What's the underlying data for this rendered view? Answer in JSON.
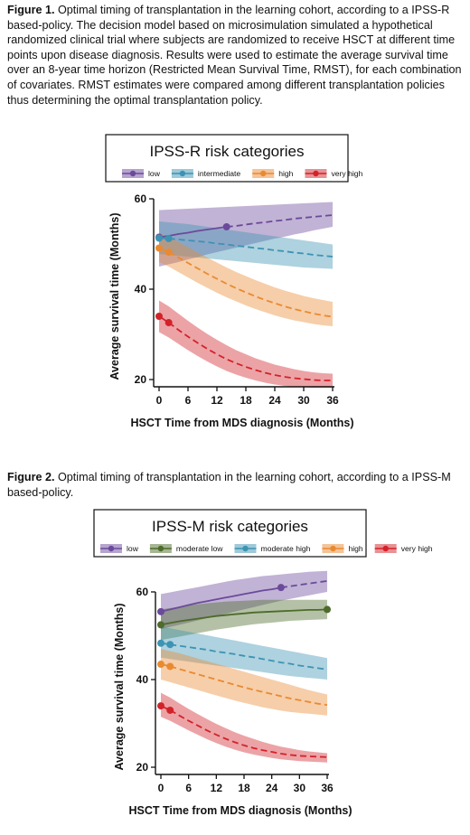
{
  "figure1": {
    "caption_label": "Figure 1.",
    "caption_text": " Optimal timing of transplantation in the learning cohort, according to a IPSS-R based-policy.  The decision model based on microsimulation simulated a hypothetical randomized clinical trial where subjects are randomized to receive HSCT at different time points upon disease diagnosis. Results were used to estimate the average survival time over an 8-year time horizon (Restricted Mean Survival Time, RMST), for each combination of covariates. RMST estimates were compared among different transplantation policies thus determining the optimal transplantation policy."
  },
  "figure2": {
    "caption_label": "Figure 2.",
    "caption_text": " Optimal timing of transplantation in the learning cohort, according to a IPSS-M based-policy."
  },
  "chart_data": [
    {
      "type": "line",
      "legend_title": "IPSS-R risk categories",
      "xlabel": "HSCT Time from MDS diagnosis (Months)",
      "ylabel": "Average survival time (Months)",
      "xlim": [
        0,
        36
      ],
      "ylim": [
        20,
        60
      ],
      "xticks": [
        0,
        6,
        12,
        18,
        24,
        30,
        36
      ],
      "yticks": [
        20,
        40,
        60
      ],
      "grid": false,
      "legend_placement": "top",
      "x": [
        0,
        2,
        4,
        6,
        8,
        10,
        12,
        14,
        16,
        18,
        20,
        22,
        24,
        26,
        28,
        30,
        32,
        34,
        36
      ],
      "series": [
        {
          "name": "low",
          "color": "#6b4a9b",
          "values": [
            51.5,
            51.8,
            52.2,
            52.5,
            52.9,
            53.2,
            53.5,
            53.8,
            54.0,
            54.3,
            54.6,
            54.8,
            55.1,
            55.3,
            55.6,
            55.8,
            56.0,
            56.2,
            56.4
          ],
          "lower": [
            45.0,
            45.5,
            46.0,
            46.6,
            47.1,
            47.7,
            48.2,
            48.7,
            49.2,
            49.7,
            50.2,
            50.7,
            51.2,
            51.6,
            52.1,
            52.5,
            53.0,
            53.4,
            53.8
          ],
          "upper": [
            57.5,
            57.6,
            57.7,
            57.8,
            57.9,
            58.0,
            58.1,
            58.2,
            58.3,
            58.4,
            58.5,
            58.6,
            58.7,
            58.8,
            58.9,
            59.0,
            59.1,
            59.2,
            59.3
          ],
          "optimal_x": 14
        },
        {
          "name": "intermediate",
          "color": "#3d93b3",
          "values": [
            51.3,
            51.2,
            51.0,
            50.8,
            50.6,
            50.4,
            50.1,
            49.9,
            49.6,
            49.4,
            49.1,
            48.9,
            48.6,
            48.4,
            48.1,
            47.9,
            47.6,
            47.4,
            47.2
          ],
          "lower": [
            47.8,
            47.6,
            47.4,
            47.2,
            47.0,
            46.8,
            46.6,
            46.4,
            46.2,
            46.0,
            45.8,
            45.6,
            45.4,
            45.2,
            45.0,
            44.8,
            44.7,
            44.6,
            44.5
          ],
          "upper": [
            55.0,
            54.8,
            54.6,
            54.4,
            54.1,
            53.8,
            53.5,
            53.2,
            52.9,
            52.6,
            52.3,
            52.0,
            51.7,
            51.4,
            51.1,
            50.8,
            50.5,
            50.2,
            49.9
          ],
          "optimal_x": 2
        },
        {
          "name": "high",
          "color": "#e98a32",
          "values": [
            49.1,
            48.2,
            47.0,
            45.8,
            44.6,
            43.4,
            42.3,
            41.2,
            40.2,
            39.3,
            38.4,
            37.6,
            36.9,
            36.2,
            35.6,
            35.1,
            34.6,
            34.2,
            33.9
          ],
          "lower": [
            46.0,
            45.0,
            43.8,
            42.6,
            41.4,
            40.3,
            39.2,
            38.2,
            37.3,
            36.4,
            35.6,
            34.9,
            34.2,
            33.6,
            33.1,
            32.7,
            32.3,
            32.0,
            31.8
          ],
          "upper": [
            52.5,
            51.6,
            50.5,
            49.3,
            48.1,
            47.0,
            45.9,
            44.8,
            43.8,
            42.9,
            42.0,
            41.2,
            40.4,
            39.7,
            39.1,
            38.5,
            38.0,
            37.6,
            37.2
          ],
          "optimal_x": 2
        },
        {
          "name": "very high",
          "color": "#d2232a",
          "values": [
            34.0,
            32.6,
            31.0,
            29.5,
            28.1,
            26.8,
            25.6,
            24.5,
            23.6,
            22.8,
            22.1,
            21.5,
            21.0,
            20.6,
            20.3,
            20.1,
            19.9,
            19.8,
            19.8
          ],
          "lower": [
            30.5,
            29.3,
            27.9,
            26.5,
            25.2,
            24.0,
            22.9,
            21.9,
            21.1,
            20.4,
            19.8,
            19.3,
            18.9,
            18.6,
            18.4,
            18.3,
            18.2,
            18.2,
            18.2
          ],
          "upper": [
            37.5,
            36.2,
            34.6,
            33.0,
            31.5,
            30.1,
            28.8,
            27.6,
            26.5,
            25.6,
            24.7,
            24.0,
            23.3,
            22.8,
            22.3,
            21.9,
            21.6,
            21.4,
            21.3
          ],
          "optimal_x": 2
        }
      ]
    },
    {
      "type": "line",
      "legend_title": "IPSS-M risk categories",
      "xlabel": "HSCT Time from MDS diagnosis (Months)",
      "ylabel": "Average survival time (Months)",
      "xlim": [
        0,
        36
      ],
      "ylim": [
        20,
        60
      ],
      "xticks": [
        0,
        6,
        12,
        18,
        24,
        30,
        36
      ],
      "yticks": [
        20,
        40,
        60
      ],
      "grid": false,
      "legend_placement": "top",
      "x": [
        0,
        2,
        4,
        6,
        8,
        10,
        12,
        14,
        16,
        18,
        20,
        22,
        24,
        26,
        28,
        30,
        32,
        34,
        36
      ],
      "series": [
        {
          "name": "low",
          "color": "#6b4a9b",
          "values": [
            55.5,
            56.0,
            56.5,
            57.0,
            57.5,
            57.9,
            58.3,
            58.7,
            59.1,
            59.5,
            59.9,
            60.3,
            60.6,
            61.0,
            61.3,
            61.6,
            61.9,
            62.2,
            62.5
          ],
          "lower": [
            51.5,
            52.0,
            52.5,
            53.0,
            53.5,
            54.0,
            54.5,
            55.0,
            55.5,
            56.0,
            56.5,
            57.0,
            57.5,
            58.0,
            58.4,
            58.8,
            59.2,
            59.6,
            60.0
          ],
          "upper": [
            59.5,
            59.9,
            60.3,
            60.7,
            61.1,
            61.5,
            61.9,
            62.3,
            62.7,
            63.0,
            63.3,
            63.6,
            63.8,
            64.0,
            64.2,
            64.4,
            64.6,
            64.7,
            64.8
          ],
          "optimal_x": 26
        },
        {
          "name": "moderate low",
          "color": "#4d6b2a",
          "values": [
            52.5,
            52.9,
            53.3,
            53.6,
            53.9,
            54.2,
            54.5,
            54.7,
            54.9,
            55.1,
            55.3,
            55.4,
            55.5,
            55.6,
            55.7,
            55.8,
            55.9,
            55.9,
            56.0
          ],
          "lower": [
            49.0,
            49.4,
            49.8,
            50.2,
            50.6,
            51.0,
            51.4,
            51.7,
            52.0,
            52.3,
            52.6,
            52.8,
            53.0,
            53.2,
            53.4,
            53.5,
            53.6,
            53.7,
            53.8
          ],
          "upper": [
            56.0,
            56.3,
            56.6,
            56.9,
            57.2,
            57.4,
            57.6,
            57.8,
            57.9,
            58.0,
            58.1,
            58.2,
            58.2,
            58.2,
            58.2,
            58.2,
            58.2,
            58.2,
            58.2
          ],
          "optimal_x": 36
        },
        {
          "name": "moderate high",
          "color": "#3d93b3",
          "values": [
            48.3,
            48.0,
            47.7,
            47.4,
            47.1,
            46.8,
            46.4,
            46.1,
            45.8,
            45.4,
            45.1,
            44.7,
            44.3,
            43.9,
            43.6,
            43.2,
            42.9,
            42.6,
            42.3
          ],
          "lower": [
            45.0,
            44.7,
            44.4,
            44.1,
            43.8,
            43.5,
            43.2,
            42.9,
            42.6,
            42.3,
            42.0,
            41.7,
            41.4,
            41.1,
            40.8,
            40.6,
            40.4,
            40.2,
            40.0
          ],
          "upper": [
            52.0,
            51.7,
            51.3,
            50.9,
            50.5,
            50.1,
            49.7,
            49.3,
            48.9,
            48.5,
            48.1,
            47.7,
            47.3,
            46.9,
            46.5,
            46.1,
            45.7,
            45.3,
            44.9
          ],
          "optimal_x": 2
        },
        {
          "name": "high",
          "color": "#e98a32",
          "values": [
            43.5,
            43.0,
            42.4,
            41.8,
            41.2,
            40.6,
            40.0,
            39.4,
            38.8,
            38.2,
            37.7,
            37.2,
            36.7,
            36.2,
            35.7,
            35.3,
            34.9,
            34.5,
            34.2
          ],
          "lower": [
            40.0,
            39.4,
            38.8,
            38.2,
            37.6,
            37.0,
            36.4,
            35.8,
            35.2,
            34.7,
            34.2,
            33.7,
            33.3,
            32.9,
            32.6,
            32.4,
            32.2,
            32.0,
            31.8
          ],
          "upper": [
            47.0,
            46.5,
            46.0,
            45.4,
            44.8,
            44.2,
            43.6,
            43.0,
            42.4,
            41.8,
            41.2,
            40.6,
            40.0,
            39.4,
            38.8,
            38.2,
            37.6,
            37.1,
            36.6
          ],
          "optimal_x": 2
        },
        {
          "name": "very high",
          "color": "#d2232a",
          "values": [
            34.0,
            33.0,
            31.8,
            30.6,
            29.5,
            28.4,
            27.4,
            26.5,
            25.7,
            25.0,
            24.4,
            23.9,
            23.5,
            23.1,
            22.8,
            22.6,
            22.5,
            22.4,
            22.3
          ],
          "lower": [
            31.5,
            30.6,
            29.5,
            28.4,
            27.4,
            26.4,
            25.5,
            24.7,
            24.0,
            23.4,
            22.9,
            22.5,
            22.1,
            21.8,
            21.6,
            21.4,
            21.3,
            21.2,
            21.1
          ],
          "upper": [
            37.0,
            35.9,
            34.6,
            33.3,
            32.1,
            31.0,
            29.9,
            28.9,
            28.0,
            27.2,
            26.5,
            25.8,
            25.2,
            24.7,
            24.3,
            23.9,
            23.6,
            23.4,
            23.2
          ],
          "optimal_x": 2
        }
      ]
    }
  ]
}
